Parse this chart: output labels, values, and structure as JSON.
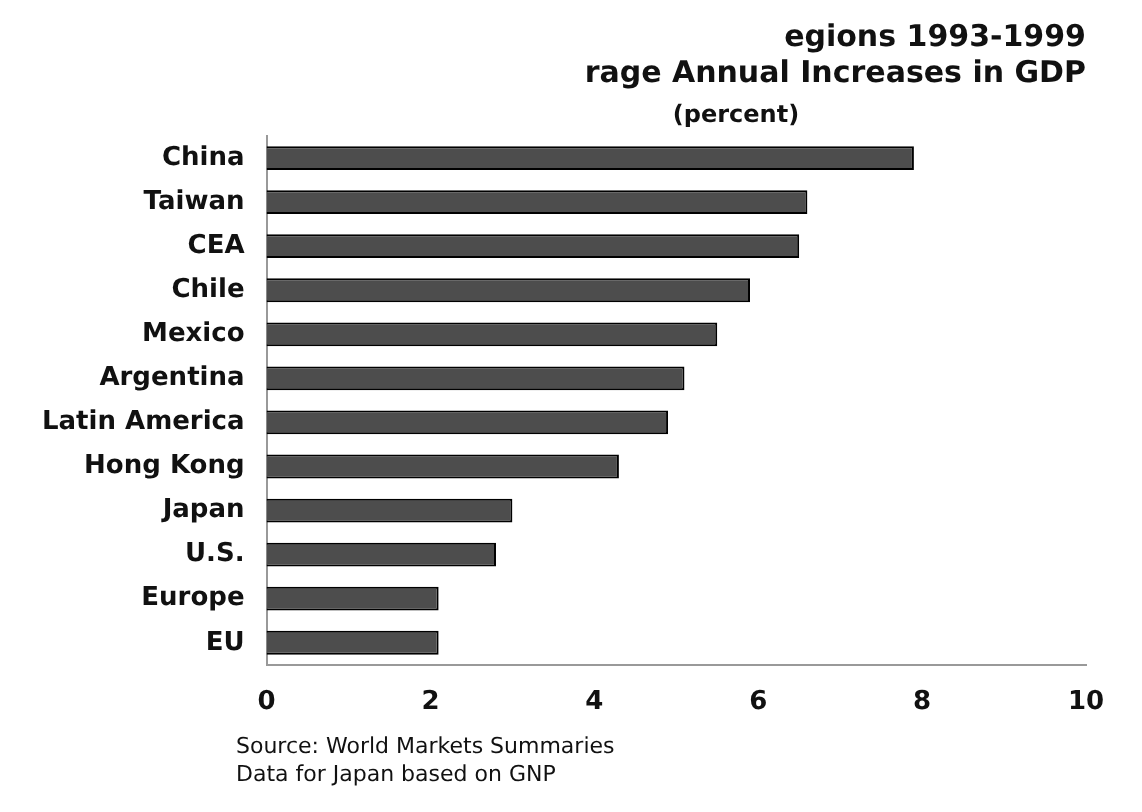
{
  "chart_data": {
    "type": "bar",
    "orientation": "horizontal",
    "title": "egions 1993-1999",
    "subtitle": "rage Annual Increases in GDP",
    "annotations": [
      "(percent)",
      "Source: World Markets Summaries",
      "Data for Japan based on GNP"
    ],
    "categories": [
      "China",
      "Taiwan",
      "CEA",
      "Chile",
      "Mexico",
      "Argentina",
      "Latin America",
      "Hong Kong",
      "Japan",
      "U.S.",
      "Europe",
      "EU"
    ],
    "values": [
      7.9,
      6.6,
      6.5,
      5.9,
      5.5,
      5.1,
      4.9,
      4.3,
      3.0,
      2.8,
      2.1,
      2.1
    ],
    "color": "#4d4d4d",
    "xlim": [
      0,
      10
    ],
    "xticks": [
      0,
      2,
      4,
      6,
      8,
      10
    ],
    "grid": false
  }
}
